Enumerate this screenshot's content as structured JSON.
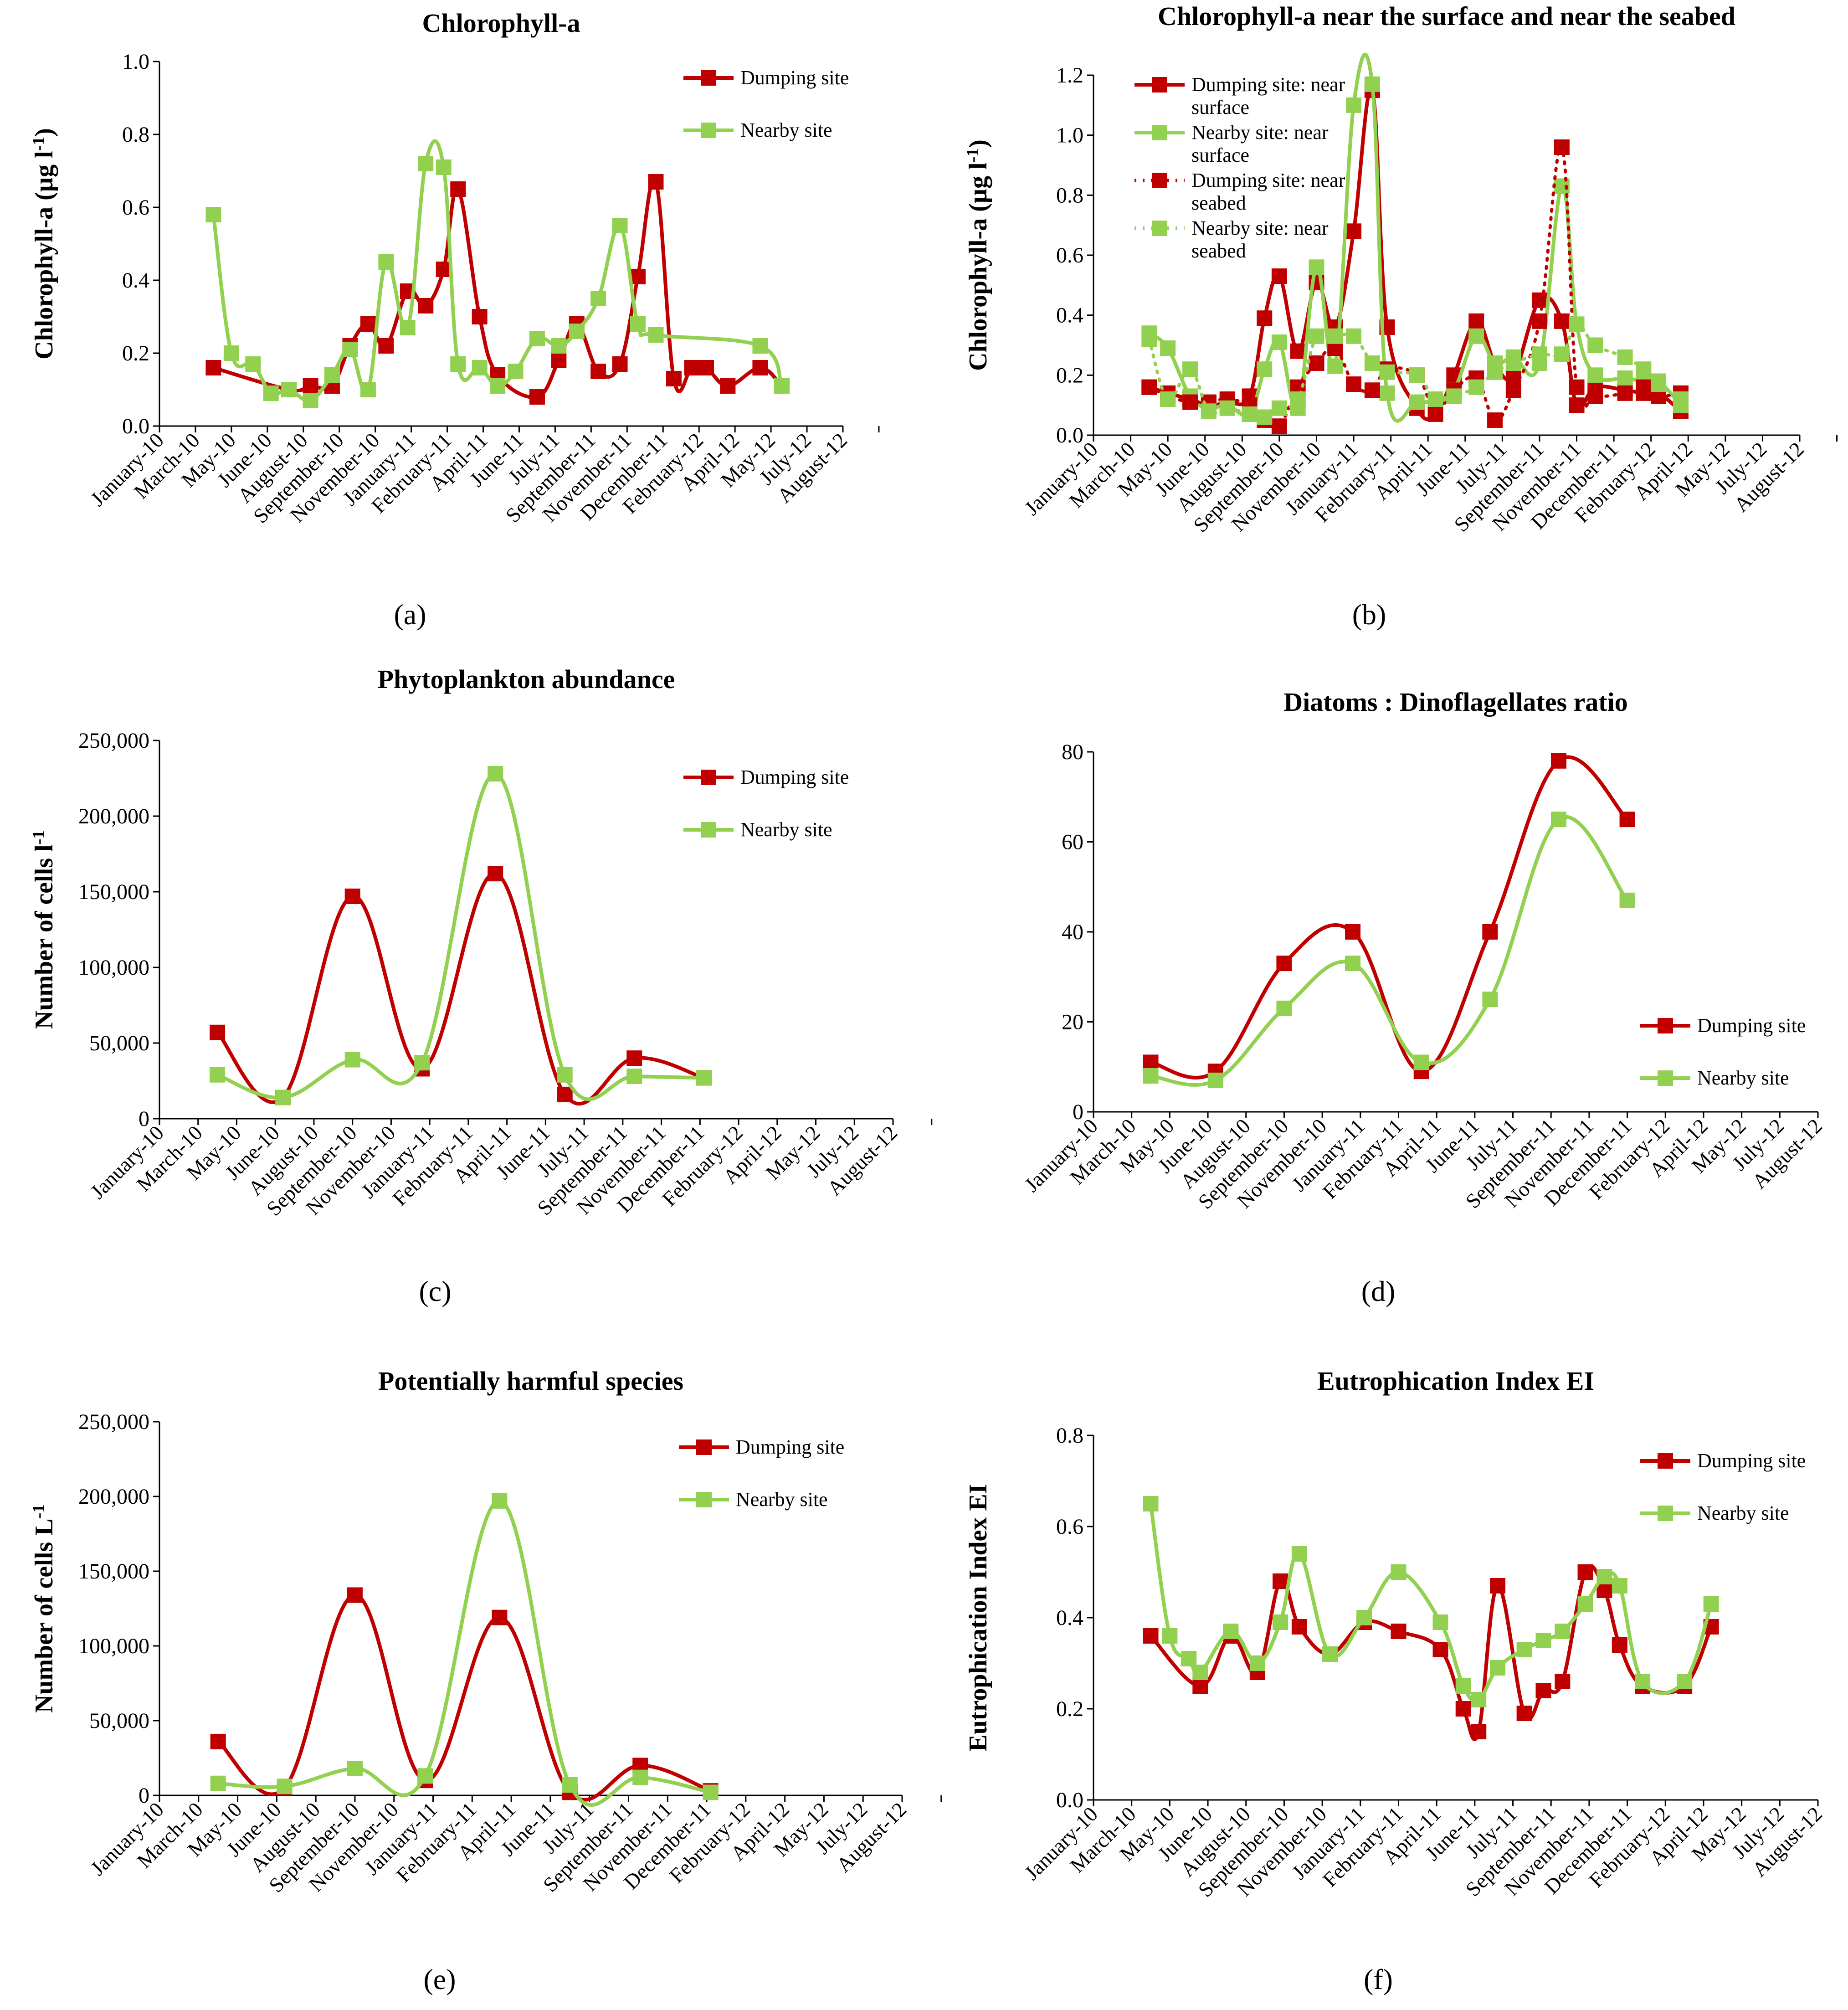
{
  "figure": {
    "x_months": [
      "January-10",
      "March-10",
      "May-10",
      "June-10",
      "August-10",
      "September-10",
      "November-10",
      "January-11",
      "February-11",
      "April-11",
      "June-11",
      "July-11",
      "September-11",
      "November-11",
      "December-11",
      "February-12",
      "April-12",
      "May-12",
      "July-12",
      "August-12"
    ]
  },
  "colors": {
    "dumping": "#c00000",
    "nearby": "#92d050"
  },
  "chart_data": [
    {
      "id": "a",
      "type": "line",
      "label": "(a)",
      "title": "Chlorophyll-a",
      "ylabel": "Chlorophyll-a (µg l",
      "ylabel_sup": "-1",
      "ylabel_tail": ")",
      "ylim": [
        0,
        1.0
      ],
      "yticks": [
        "0.0",
        "0.2",
        "0.4",
        "0.6",
        "0.8",
        "1.0"
      ],
      "ytick_values": [
        0,
        0.2,
        0.4,
        0.6,
        0.8,
        1.0
      ],
      "xlim": [
        0,
        19
      ],
      "legend": "top-right",
      "series": [
        {
          "name": "Dumping site",
          "color": "#c00000",
          "dashed": false,
          "x": [
            1.5,
            3.6,
            4.2,
            4.8,
            5.3,
            5.8,
            6.3,
            6.9,
            7.4,
            7.9,
            8.3,
            8.9,
            9.4,
            10.5,
            11.1,
            11.6,
            12.2,
            12.8,
            13.3,
            13.8,
            14.3,
            14.8,
            15.2,
            15.8,
            16.7,
            17.3
          ],
          "y": [
            0.16,
            0.1,
            0.11,
            0.11,
            0.22,
            0.28,
            0.22,
            0.37,
            0.33,
            0.43,
            0.65,
            0.3,
            0.14,
            0.08,
            0.18,
            0.28,
            0.15,
            0.17,
            0.41,
            0.67,
            0.13,
            0.16,
            0.16,
            0.11,
            0.16,
            0.11
          ]
        },
        {
          "name": "Nearby site",
          "color": "#92d050",
          "dashed": false,
          "x": [
            1.5,
            2.0,
            2.6,
            3.1,
            3.6,
            4.2,
            4.8,
            5.3,
            5.8,
            6.3,
            6.9,
            7.4,
            7.9,
            8.3,
            8.9,
            9.4,
            9.9,
            10.5,
            11.1,
            11.6,
            12.2,
            12.8,
            13.3,
            13.8,
            16.7,
            17.3
          ],
          "y": [
            0.58,
            0.2,
            0.17,
            0.09,
            0.1,
            0.07,
            0.14,
            0.21,
            0.1,
            0.45,
            0.27,
            0.72,
            0.71,
            0.17,
            0.16,
            0.11,
            0.15,
            0.24,
            0.22,
            0.26,
            0.35,
            0.55,
            0.28,
            0.25,
            0.22,
            0.11
          ]
        }
      ]
    },
    {
      "id": "b",
      "type": "line",
      "label": "(b)",
      "title": "Chlorophyll-a near the surface and near the seabed",
      "ylabel": "Chlorophyll-a (µg l",
      "ylabel_sup": "-1",
      "ylabel_tail": ")",
      "ylim": [
        0,
        1.2
      ],
      "yticks": [
        "0.0",
        "0.2",
        "0.4",
        "0.6",
        "0.8",
        "1.0",
        "1.2"
      ],
      "ytick_values": [
        0,
        0.2,
        0.4,
        0.6,
        0.8,
        1.0,
        1.2
      ],
      "xlim": [
        0,
        19
      ],
      "legend": "top-left",
      "series": [
        {
          "name": "Dumping site: near surface",
          "legend_lines": [
            "Dumping site: near",
            "surface"
          ],
          "color": "#c00000",
          "dashed": false,
          "x": [
            1.5,
            2.0,
            2.6,
            3.1,
            3.6,
            4.2,
            4.6,
            5.0,
            5.5,
            6.0,
            6.5,
            7.0,
            7.5,
            7.9,
            8.7,
            9.2,
            9.7,
            10.3,
            10.8,
            11.3,
            12.0,
            12.6,
            13.0,
            13.5,
            14.3,
            14.8,
            15.2,
            15.8
          ],
          "y": [
            0.16,
            0.14,
            0.12,
            0.1,
            0.11,
            0.13,
            0.39,
            0.53,
            0.28,
            0.51,
            0.36,
            0.68,
            1.15,
            0.36,
            0.09,
            0.07,
            0.2,
            0.38,
            0.24,
            0.2,
            0.45,
            0.38,
            0.1,
            0.16,
            0.15,
            0.14,
            0.14,
            0.08
          ]
        },
        {
          "name": "Nearby site: near surface",
          "legend_lines": [
            "Nearby site: near",
            "surface"
          ],
          "color": "#92d050",
          "dashed": false,
          "x": [
            1.5,
            2.0,
            2.6,
            3.1,
            3.6,
            4.2,
            4.6,
            5.0,
            5.5,
            6.0,
            6.5,
            7.0,
            7.5,
            7.9,
            8.7,
            9.2,
            9.7,
            10.3,
            10.8,
            11.3,
            12.0,
            12.6,
            13.0,
            13.5,
            14.3,
            14.8,
            15.2,
            15.8
          ],
          "y": [
            0.34,
            0.29,
            0.13,
            0.09,
            0.1,
            0.07,
            0.22,
            0.31,
            0.09,
            0.56,
            0.23,
            1.1,
            1.17,
            0.14,
            0.11,
            0.12,
            0.15,
            0.33,
            0.24,
            0.26,
            0.24,
            0.83,
            0.37,
            0.2,
            0.19,
            0.18,
            0.18,
            0.1
          ]
        },
        {
          "name": "Dumping site: near seabed",
          "legend_lines": [
            "Dumping site: near",
            "seabed"
          ],
          "color": "#c00000",
          "dashed": true,
          "x": [
            1.5,
            2.0,
            2.6,
            3.1,
            3.6,
            4.2,
            4.6,
            5.0,
            5.5,
            6.0,
            6.5,
            7.0,
            7.5,
            7.9,
            8.7,
            9.2,
            9.7,
            10.3,
            10.8,
            11.3,
            12.0,
            12.6,
            13.0,
            13.5,
            14.3,
            14.8,
            15.2,
            15.8
          ],
          "y": [
            0.16,
            0.13,
            0.11,
            0.11,
            0.12,
            0.1,
            0.05,
            0.03,
            0.16,
            0.24,
            0.29,
            0.17,
            0.15,
            0.22,
            0.2,
            0.08,
            0.15,
            0.19,
            0.05,
            0.15,
            0.38,
            0.96,
            0.16,
            0.13,
            0.14,
            0.16,
            0.13,
            0.14
          ]
        },
        {
          "name": "Nearby site: near seabed",
          "legend_lines": [
            "Nearby site: near",
            "seabed"
          ],
          "color": "#92d050",
          "dashed": true,
          "x": [
            1.5,
            2.0,
            2.6,
            3.1,
            3.6,
            4.2,
            4.6,
            5.0,
            5.5,
            6.0,
            6.5,
            7.0,
            7.5,
            7.9,
            8.7,
            9.2,
            9.7,
            10.3,
            10.8,
            11.3,
            12.0,
            12.6,
            13.0,
            13.5,
            14.3,
            14.8,
            15.2,
            15.8
          ],
          "y": [
            0.32,
            0.12,
            0.22,
            0.08,
            0.09,
            0.07,
            0.06,
            0.09,
            0.12,
            0.33,
            0.33,
            0.33,
            0.24,
            0.21,
            0.2,
            0.12,
            0.13,
            0.16,
            0.21,
            0.24,
            0.27,
            0.27,
            0.37,
            0.3,
            0.26,
            0.22,
            0.17,
            0.12
          ]
        }
      ]
    },
    {
      "id": "c",
      "type": "line",
      "label": "(c)",
      "title": "Phytoplankton abundance",
      "ylabel": "Number of cells l",
      "ylabel_sup": "-1",
      "ylabel_tail": "",
      "ylim": [
        0,
        250000
      ],
      "yticks": [
        "0",
        "50,000",
        "100,000",
        "150,000",
        "200,000",
        "250,000"
      ],
      "ytick_values": [
        0,
        50000,
        100000,
        150000,
        200000,
        250000
      ],
      "xlim": [
        0,
        19
      ],
      "legend": "top-right",
      "series": [
        {
          "name": "Dumping site",
          "color": "#c00000",
          "dashed": false,
          "x": [
            1.5,
            3.2,
            5.0,
            6.8,
            8.7,
            10.5,
            12.3,
            14.1
          ],
          "y": [
            57000,
            14000,
            147000,
            33000,
            162000,
            16000,
            40000,
            27000
          ]
        },
        {
          "name": "Nearby site",
          "color": "#92d050",
          "dashed": false,
          "x": [
            1.5,
            3.2,
            5.0,
            6.8,
            8.7,
            10.5,
            12.3,
            14.1
          ],
          "y": [
            29000,
            14000,
            39000,
            37000,
            228000,
            29000,
            28000,
            27000
          ]
        }
      ]
    },
    {
      "id": "d",
      "type": "line",
      "label": "(d)",
      "title": "Diatoms : Dinoflagellates ratio",
      "ylabel": "",
      "ylabel_sup": "",
      "ylabel_tail": "",
      "ylim": [
        0,
        80
      ],
      "yticks": [
        "0",
        "20",
        "40",
        "60",
        "80"
      ],
      "ytick_values": [
        0,
        20,
        40,
        60,
        80
      ],
      "xlim": [
        0,
        19
      ],
      "legend": "bottom-right",
      "series": [
        {
          "name": "Dumping site",
          "color": "#c00000",
          "dashed": false,
          "x": [
            1.5,
            3.2,
            5.0,
            6.8,
            8.6,
            10.4,
            12.2,
            14.0
          ],
          "y": [
            11,
            9,
            33,
            40,
            9,
            40,
            78,
            65
          ]
        },
        {
          "name": "Nearby site",
          "color": "#92d050",
          "dashed": false,
          "x": [
            1.5,
            3.2,
            5.0,
            6.8,
            8.6,
            10.4,
            12.2,
            14.0
          ],
          "y": [
            8,
            7,
            23,
            33,
            11,
            25,
            65,
            47
          ]
        }
      ]
    },
    {
      "id": "e",
      "type": "line",
      "label": "(e)",
      "title": "Potentially harmful species",
      "ylabel": "Number of cells L",
      "ylabel_sup": "-1",
      "ylabel_tail": "",
      "ylim": [
        0,
        250000
      ],
      "yticks": [
        "0",
        "50,000",
        "100,000",
        "150,000",
        "200,000",
        "250,000"
      ],
      "ytick_values": [
        0,
        50000,
        100000,
        150000,
        200000,
        250000
      ],
      "xlim": [
        0,
        19
      ],
      "legend": "top-right",
      "series": [
        {
          "name": "Dumping site",
          "color": "#c00000",
          "dashed": false,
          "x": [
            1.5,
            3.2,
            5.0,
            6.8,
            8.7,
            10.5,
            12.3,
            14.1
          ],
          "y": [
            36000,
            5000,
            134000,
            10000,
            119000,
            2000,
            20000,
            3000
          ]
        },
        {
          "name": "Nearby site",
          "color": "#92d050",
          "dashed": false,
          "x": [
            1.5,
            3.2,
            5.0,
            6.8,
            8.7,
            10.5,
            12.3,
            14.1
          ],
          "y": [
            8000,
            6000,
            18000,
            13000,
            197000,
            7000,
            12000,
            2000
          ]
        }
      ]
    },
    {
      "id": "f",
      "type": "line",
      "label": "(f)",
      "title": "Eutrophication Index EI",
      "ylabel": "Eutrophication Index EI",
      "ylabel_sup": "",
      "ylabel_tail": "",
      "ylim": [
        0,
        0.8
      ],
      "yticks": [
        "0.0",
        "0.2",
        "0.4",
        "0.6",
        "0.8"
      ],
      "ytick_values": [
        0,
        0.2,
        0.4,
        0.6,
        0.8
      ],
      "xlim": [
        0,
        19
      ],
      "legend": "top-right",
      "series": [
        {
          "name": "Dumping site",
          "color": "#c00000",
          "dashed": false,
          "x": [
            1.5,
            2.8,
            3.6,
            4.3,
            4.9,
            5.4,
            6.2,
            7.1,
            8.0,
            9.1,
            9.7,
            10.1,
            10.6,
            11.3,
            11.8,
            12.3,
            12.9,
            13.4,
            13.8,
            14.4,
            15.5,
            16.2
          ],
          "y": [
            0.36,
            0.25,
            0.36,
            0.28,
            0.48,
            0.38,
            0.32,
            0.39,
            0.37,
            0.33,
            0.2,
            0.15,
            0.47,
            0.19,
            0.24,
            0.26,
            0.5,
            0.46,
            0.34,
            0.25,
            0.25,
            0.38
          ]
        },
        {
          "name": "Nearby site",
          "color": "#92d050",
          "dashed": false,
          "x": [
            1.5,
            2.0,
            2.5,
            2.8,
            3.6,
            4.3,
            4.9,
            5.4,
            6.2,
            7.1,
            8.0,
            9.1,
            9.7,
            10.1,
            10.6,
            11.3,
            11.8,
            12.3,
            12.9,
            13.4,
            13.8,
            14.4,
            15.5,
            16.2
          ],
          "y": [
            0.65,
            0.36,
            0.31,
            0.28,
            0.37,
            0.3,
            0.39,
            0.54,
            0.32,
            0.4,
            0.5,
            0.39,
            0.25,
            0.22,
            0.29,
            0.33,
            0.35,
            0.37,
            0.43,
            0.49,
            0.47,
            0.26,
            0.26,
            0.43
          ]
        }
      ]
    }
  ]
}
